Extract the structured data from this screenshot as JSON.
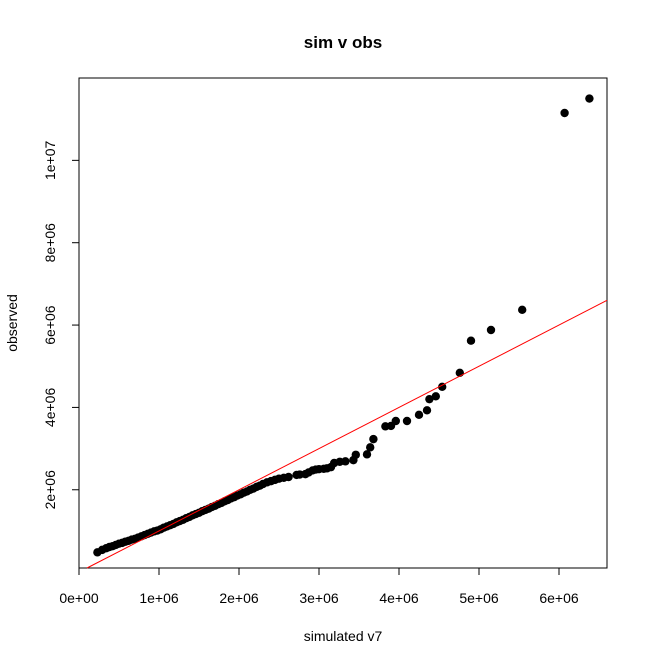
{
  "chart_data": {
    "type": "scatter",
    "title": "sim v obs",
    "xlabel": "simulated v7",
    "ylabel": "observed",
    "xlim": [
      0,
      6600000
    ],
    "ylim": [
      100000,
      12000000
    ],
    "xticks": [
      {
        "value": 0,
        "label": "0e+00"
      },
      {
        "value": 1000000,
        "label": "1e+06"
      },
      {
        "value": 2000000,
        "label": "2e+06"
      },
      {
        "value": 3000000,
        "label": "3e+06"
      },
      {
        "value": 4000000,
        "label": "4e+06"
      },
      {
        "value": 5000000,
        "label": "5e+06"
      },
      {
        "value": 6000000,
        "label": "6e+06"
      }
    ],
    "yticks": [
      {
        "value": 2000000,
        "label": "2e+06"
      },
      {
        "value": 4000000,
        "label": "4e+06"
      },
      {
        "value": 6000000,
        "label": "6e+06"
      },
      {
        "value": 8000000,
        "label": "8e+06"
      },
      {
        "value": 10000000,
        "label": "1e+07"
      }
    ],
    "grid": false,
    "point_color": "#000000",
    "reference_line": {
      "slope": 1,
      "intercept": 0,
      "color": "#ff0000"
    },
    "points": [
      [
        230000,
        480000
      ],
      [
        290000,
        540000
      ],
      [
        340000,
        580000
      ],
      [
        380000,
        610000
      ],
      [
        420000,
        630000
      ],
      [
        460000,
        660000
      ],
      [
        500000,
        690000
      ],
      [
        540000,
        710000
      ],
      [
        580000,
        740000
      ],
      [
        620000,
        760000
      ],
      [
        660000,
        790000
      ],
      [
        700000,
        810000
      ],
      [
        740000,
        840000
      ],
      [
        780000,
        870000
      ],
      [
        820000,
        900000
      ],
      [
        860000,
        930000
      ],
      [
        900000,
        960000
      ],
      [
        940000,
        990000
      ],
      [
        980000,
        1010000
      ],
      [
        1020000,
        1040000
      ],
      [
        1060000,
        1080000
      ],
      [
        1100000,
        1110000
      ],
      [
        1140000,
        1140000
      ],
      [
        1180000,
        1170000
      ],
      [
        1220000,
        1210000
      ],
      [
        1260000,
        1240000
      ],
      [
        1300000,
        1270000
      ],
      [
        1340000,
        1310000
      ],
      [
        1380000,
        1340000
      ],
      [
        1420000,
        1380000
      ],
      [
        1460000,
        1410000
      ],
      [
        1500000,
        1440000
      ],
      [
        1540000,
        1480000
      ],
      [
        1580000,
        1510000
      ],
      [
        1620000,
        1540000
      ],
      [
        1660000,
        1580000
      ],
      [
        1700000,
        1610000
      ],
      [
        1740000,
        1650000
      ],
      [
        1780000,
        1680000
      ],
      [
        1820000,
        1720000
      ],
      [
        1860000,
        1750000
      ],
      [
        1900000,
        1790000
      ],
      [
        1940000,
        1820000
      ],
      [
        1980000,
        1860000
      ],
      [
        2020000,
        1890000
      ],
      [
        2060000,
        1930000
      ],
      [
        2100000,
        1960000
      ],
      [
        2140000,
        2000000
      ],
      [
        2180000,
        2030000
      ],
      [
        2220000,
        2070000
      ],
      [
        2260000,
        2100000
      ],
      [
        2300000,
        2140000
      ],
      [
        2350000,
        2180000
      ],
      [
        2400000,
        2210000
      ],
      [
        2450000,
        2240000
      ],
      [
        2500000,
        2270000
      ],
      [
        2560000,
        2290000
      ],
      [
        2620000,
        2310000
      ],
      [
        2720000,
        2360000
      ],
      [
        2760000,
        2370000
      ],
      [
        2830000,
        2380000
      ],
      [
        2870000,
        2420000
      ],
      [
        2920000,
        2470000
      ],
      [
        2960000,
        2490000
      ],
      [
        3000000,
        2500000
      ],
      [
        3060000,
        2510000
      ],
      [
        3100000,
        2520000
      ],
      [
        3150000,
        2550000
      ],
      [
        3190000,
        2650000
      ],
      [
        3260000,
        2680000
      ],
      [
        3330000,
        2690000
      ],
      [
        3430000,
        2720000
      ],
      [
        3460000,
        2850000
      ],
      [
        3600000,
        2860000
      ],
      [
        3640000,
        3030000
      ],
      [
        3680000,
        3230000
      ],
      [
        3830000,
        3540000
      ],
      [
        3900000,
        3550000
      ],
      [
        3960000,
        3670000
      ],
      [
        4100000,
        3670000
      ],
      [
        4250000,
        3820000
      ],
      [
        4350000,
        3930000
      ],
      [
        4380000,
        4200000
      ],
      [
        4460000,
        4270000
      ],
      [
        4540000,
        4500000
      ],
      [
        4760000,
        4840000
      ],
      [
        4900000,
        5620000
      ],
      [
        5150000,
        5880000
      ],
      [
        5540000,
        6370000
      ],
      [
        6070000,
        11150000
      ],
      [
        6380000,
        11500000
      ]
    ]
  }
}
